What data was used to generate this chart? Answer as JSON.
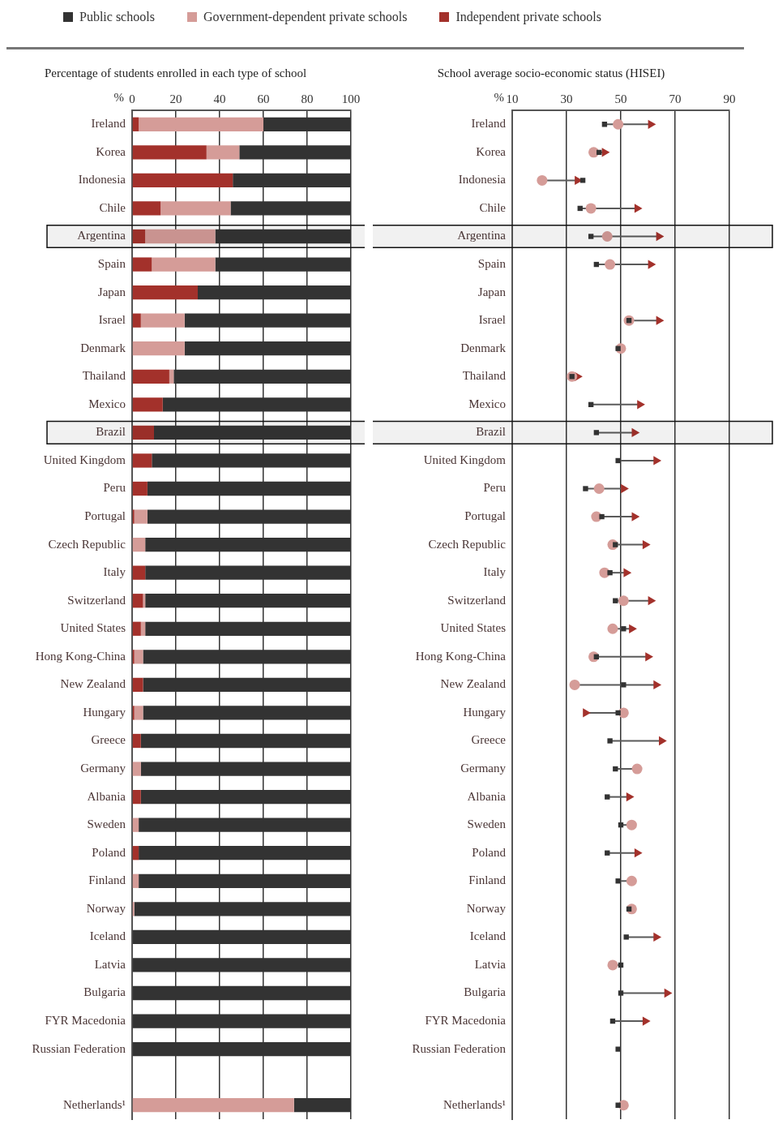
{
  "chart_data": [
    {
      "type": "bar",
      "orientation": "horizontal",
      "stacked": true,
      "title": "Percentage of students enrolled in each type of school",
      "xlabel": "%",
      "legend": "top",
      "grid": "x",
      "bands": [
        {
          "axis": "y",
          "from": "Argentina",
          "to": "Argentina",
          "color": "#111111"
        },
        {
          "axis": "y",
          "from": "Brazil",
          "to": "Brazil",
          "color": "#111111"
        }
      ],
      "categories": [
        "Ireland",
        "Korea",
        "Indonesia",
        "Chile",
        "Argentina",
        "Spain",
        "Japan",
        "Israel",
        "Denmark",
        "Thailand",
        "Mexico",
        "Brazil",
        "United Kingdom",
        "Peru",
        "Portugal",
        "Czech Republic",
        "Italy",
        "Switzerland",
        "United States",
        "Hong Kong-China",
        "New Zealand",
        "Hungary",
        "Greece",
        "Germany",
        "Albania",
        "Sweden",
        "Poland",
        "Finland",
        "Norway",
        "Iceland",
        "Latvia",
        "Bulgaria",
        "FYR Macedonia",
        "Russian Federation",
        null,
        "Netherlands¹"
      ],
      "xlim": [
        0,
        100
      ],
      "xticks": [
        0,
        20,
        40,
        60,
        80,
        100
      ],
      "series": [
        {
          "name": "Independent private schools",
          "color": "#a3312b",
          "values": [
            3,
            34,
            46,
            13,
            6,
            9,
            30,
            4,
            0,
            17,
            14,
            10,
            9,
            7,
            1,
            0,
            6,
            5,
            4,
            1,
            5,
            1,
            4,
            0,
            4,
            0,
            3,
            0,
            0,
            0,
            0,
            0,
            0,
            0,
            null,
            0
          ]
        },
        {
          "name": "Government-dependent private schools",
          "color": "#d59c98",
          "values": [
            57,
            15,
            0,
            32,
            32,
            29,
            0,
            20,
            24,
            2,
            0,
            0,
            0,
            0,
            6,
            6,
            0,
            1,
            2,
            4,
            0,
            4,
            0,
            4,
            0,
            3,
            0,
            3,
            1,
            0,
            0,
            0,
            0,
            0,
            null,
            74
          ]
        },
        {
          "name": "Public schools",
          "color": "#333333",
          "values": [
            40,
            51,
            54,
            55,
            62,
            62,
            70,
            76,
            76,
            81,
            86,
            90,
            91,
            93,
            93,
            94,
            94,
            94,
            94,
            95,
            95,
            95,
            96,
            96,
            96,
            97,
            97,
            97,
            99,
            100,
            100,
            100,
            100,
            100,
            null,
            26
          ]
        }
      ]
    },
    {
      "type": "scatter",
      "orientation": "horizontal",
      "title": "School average socio-economic status (HISEI)",
      "xlabel": "%",
      "grid": "x",
      "bands": [
        {
          "axis": "y",
          "from": "Argentina",
          "to": "Argentina",
          "color": "#111111"
        },
        {
          "axis": "y",
          "from": "Brazil",
          "to": "Brazil",
          "color": "#111111"
        }
      ],
      "categories": [
        "Ireland",
        "Korea",
        "Indonesia",
        "Chile",
        "Argentina",
        "Spain",
        "Japan",
        "Israel",
        "Denmark",
        "Thailand",
        "Mexico",
        "Brazil",
        "United Kingdom",
        "Peru",
        "Portugal",
        "Czech Republic",
        "Italy",
        "Switzerland",
        "United States",
        "Hong Kong-China",
        "New Zealand",
        "Hungary",
        "Greece",
        "Germany",
        "Albania",
        "Sweden",
        "Poland",
        "Finland",
        "Norway",
        "Iceland",
        "Latvia",
        "Bulgaria",
        "FYR Macedonia",
        "Russian Federation",
        null,
        "Netherlands¹"
      ],
      "xlim": [
        10,
        90
      ],
      "xticks": [
        10,
        30,
        50,
        70,
        90
      ],
      "series": [
        {
          "color": "#333333",
          "marker": "square",
          "values": [
            44,
            42,
            36,
            35,
            39,
            41,
            null,
            53,
            49,
            32,
            39,
            41,
            49,
            37,
            43,
            48,
            46,
            48,
            51,
            41,
            51,
            49,
            46,
            48,
            45,
            50,
            45,
            49,
            53,
            52,
            50,
            50,
            47,
            49,
            null,
            49
          ]
        },
        {
          "color": "#d59c98",
          "marker": "circle",
          "values": [
            49,
            40,
            21,
            39,
            45,
            46,
            null,
            53,
            50,
            32,
            null,
            null,
            null,
            42,
            41,
            47,
            44,
            51,
            47,
            40,
            33,
            51,
            null,
            56,
            null,
            54,
            null,
            54,
            54,
            null,
            47,
            null,
            null,
            null,
            null,
            51
          ]
        },
        {
          "color": "#a3312b",
          "marker": "triangle",
          "values": [
            61,
            44,
            34,
            56,
            64,
            61,
            null,
            64,
            null,
            34,
            57,
            55,
            63,
            51,
            55,
            59,
            52,
            61,
            54,
            60,
            63,
            37,
            65,
            null,
            53,
            null,
            56,
            null,
            null,
            63,
            null,
            67,
            59,
            null,
            null,
            null
          ]
        }
      ]
    }
  ]
}
